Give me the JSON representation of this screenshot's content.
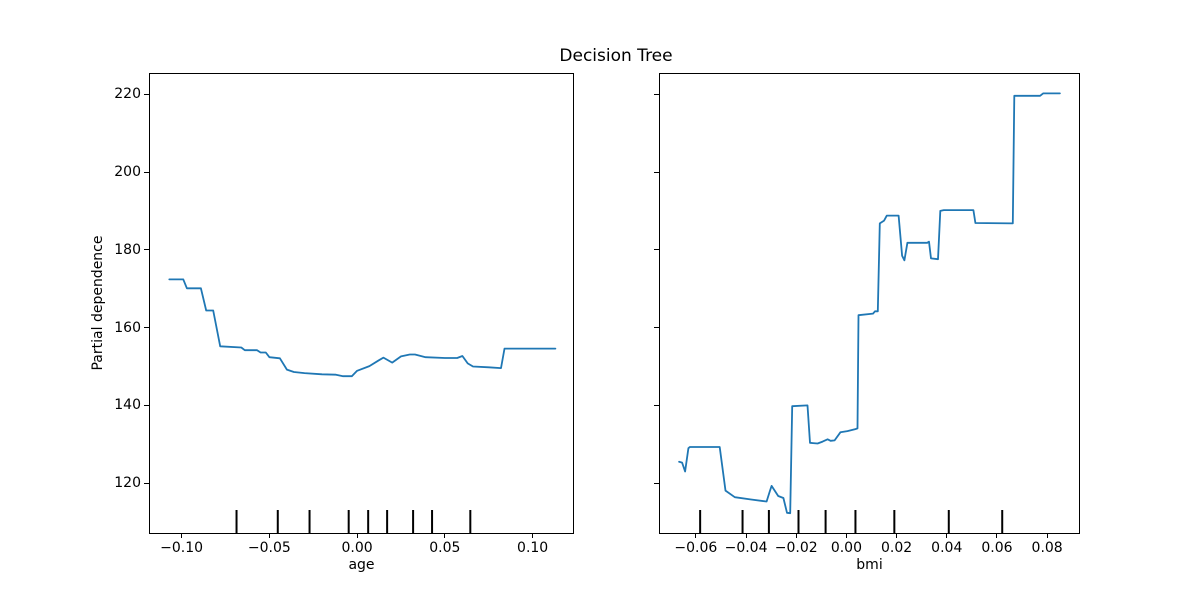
{
  "title": "Decision Tree",
  "ylabel": "Partial dependence",
  "line_color": "#1f77b4",
  "axis_color": "#000000",
  "background_color": "#ffffff",
  "chart_data": [
    {
      "type": "line",
      "xlabel": "age",
      "ylabel": "Partial dependence",
      "xlim": [
        -0.118,
        0.123
      ],
      "ylim": [
        107.2,
        225.2
      ],
      "xticks": [
        -0.1,
        -0.05,
        0.0,
        0.05,
        0.1
      ],
      "xtick_labels": [
        "−0.10",
        "−0.05",
        "0.00",
        "0.05",
        "0.10"
      ],
      "yticks": [
        120,
        140,
        160,
        180,
        200,
        220
      ],
      "ytick_labels": [
        "120",
        "140",
        "160",
        "180",
        "200",
        "220"
      ],
      "grid": false,
      "x": [
        -0.107,
        -0.099,
        -0.097,
        -0.089,
        -0.086,
        -0.082,
        -0.078,
        -0.066,
        -0.064,
        -0.057,
        -0.055,
        -0.052,
        -0.05,
        -0.044,
        -0.04,
        -0.036,
        -0.03,
        -0.02,
        -0.012,
        -0.008,
        -0.003,
        0.0,
        0.007,
        0.012,
        0.015,
        0.02,
        0.025,
        0.03,
        0.033,
        0.039,
        0.05,
        0.057,
        0.06,
        0.063,
        0.066,
        0.075,
        0.082,
        0.084,
        0.113
      ],
      "y": [
        172.4,
        172.4,
        170.1,
        170.1,
        164.4,
        164.4,
        155.2,
        154.9,
        154.2,
        154.2,
        153.6,
        153.6,
        152.4,
        152.1,
        149.2,
        148.6,
        148.3,
        148.0,
        147.9,
        147.5,
        147.5,
        148.9,
        150.1,
        151.5,
        152.3,
        151.0,
        152.6,
        153.1,
        153.1,
        152.4,
        152.2,
        152.2,
        152.7,
        150.8,
        150.0,
        149.8,
        149.6,
        154.6,
        154.6
      ],
      "deciles": [
        -0.0687,
        -0.0452,
        -0.0271,
        -0.0048,
        0.0063,
        0.0171,
        0.0319,
        0.0427,
        0.0645
      ]
    },
    {
      "type": "line",
      "xlabel": "bmi",
      "ylabel": "",
      "xlim": [
        -0.0743,
        0.0927
      ],
      "ylim": [
        107.2,
        225.2
      ],
      "xticks": [
        -0.06,
        -0.04,
        -0.02,
        0.0,
        0.02,
        0.04,
        0.06,
        0.08
      ],
      "xtick_labels": [
        "−0.06",
        "−0.04",
        "−0.02",
        "0.00",
        "0.02",
        "0.04",
        "0.06",
        "0.08"
      ],
      "yticks": [
        120,
        140,
        160,
        180,
        200,
        220
      ],
      "grid": false,
      "x": [
        -0.0667,
        -0.0655,
        -0.0643,
        -0.063,
        -0.0624,
        -0.0505,
        -0.0482,
        -0.0445,
        -0.038,
        -0.0318,
        -0.0305,
        -0.0298,
        -0.0272,
        -0.0251,
        -0.0237,
        -0.0224,
        -0.0216,
        -0.0155,
        -0.0145,
        -0.0133,
        -0.0115,
        -0.0095,
        -0.0075,
        -0.0063,
        -0.0047,
        -0.0024,
        0.0004,
        0.0036,
        0.0044,
        0.0048,
        0.0106,
        0.0114,
        0.0125,
        0.0133,
        0.015,
        0.0161,
        0.0208,
        0.0222,
        0.0231,
        0.0243,
        0.0322,
        0.0329,
        0.0337,
        0.0365,
        0.0374,
        0.0388,
        0.0506,
        0.0514,
        0.0663,
        0.0669,
        0.0772,
        0.0784,
        0.0851
      ],
      "y": [
        125.5,
        125.3,
        123.0,
        129.0,
        129.3,
        129.3,
        118.1,
        116.4,
        115.8,
        115.3,
        118.0,
        119.3,
        116.7,
        116.2,
        112.4,
        112.3,
        139.8,
        140.0,
        130.4,
        130.3,
        130.2,
        130.7,
        131.3,
        130.9,
        131.0,
        133.1,
        133.4,
        133.9,
        134.1,
        163.2,
        163.6,
        164.2,
        164.2,
        186.8,
        187.5,
        188.8,
        188.8,
        178.5,
        177.3,
        181.8,
        181.8,
        182.1,
        177.8,
        177.6,
        190.0,
        190.2,
        190.2,
        186.9,
        186.8,
        219.6,
        219.6,
        220.2,
        220.2
      ],
      "deciles": [
        -0.0583,
        -0.0414,
        -0.0309,
        -0.0191,
        -0.0083,
        0.0036,
        0.0191,
        0.0408,
        0.0621
      ]
    }
  ]
}
